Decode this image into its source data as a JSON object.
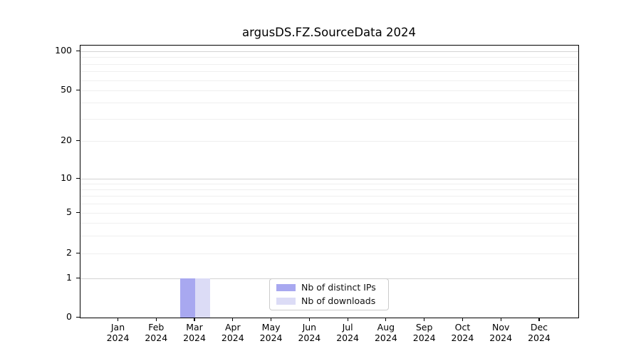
{
  "chart_data": {
    "type": "bar",
    "title": "argusDS.FZ.SourceData 2024",
    "xlabel": "",
    "ylabel": "",
    "x_months": [
      "Jan",
      "Feb",
      "Mar",
      "Apr",
      "May",
      "Jun",
      "Jul",
      "Aug",
      "Sep",
      "Oct",
      "Nov",
      "Dec"
    ],
    "x_year_label": "2024",
    "y_axis": {
      "scale": "symlog",
      "tick_values": [
        0,
        1,
        2,
        5,
        10,
        20,
        50,
        100
      ],
      "range": [
        0,
        110
      ],
      "grid": "horizontal, log minor gridlines"
    },
    "series": [
      {
        "name": "Nb of distinct IPs",
        "color": "#a8a8f0",
        "values": [
          0,
          0,
          1,
          0,
          0,
          0,
          0,
          0,
          0,
          0,
          0,
          0
        ]
      },
      {
        "name": "Nb of downloads",
        "color": "#dcdcf6",
        "values": [
          0,
          0,
          1,
          0,
          0,
          0,
          0,
          0,
          0,
          0,
          0,
          0
        ]
      }
    ],
    "legend": {
      "position": "lower center",
      "entries": [
        "Nb of distinct IPs",
        "Nb of downloads"
      ]
    }
  }
}
